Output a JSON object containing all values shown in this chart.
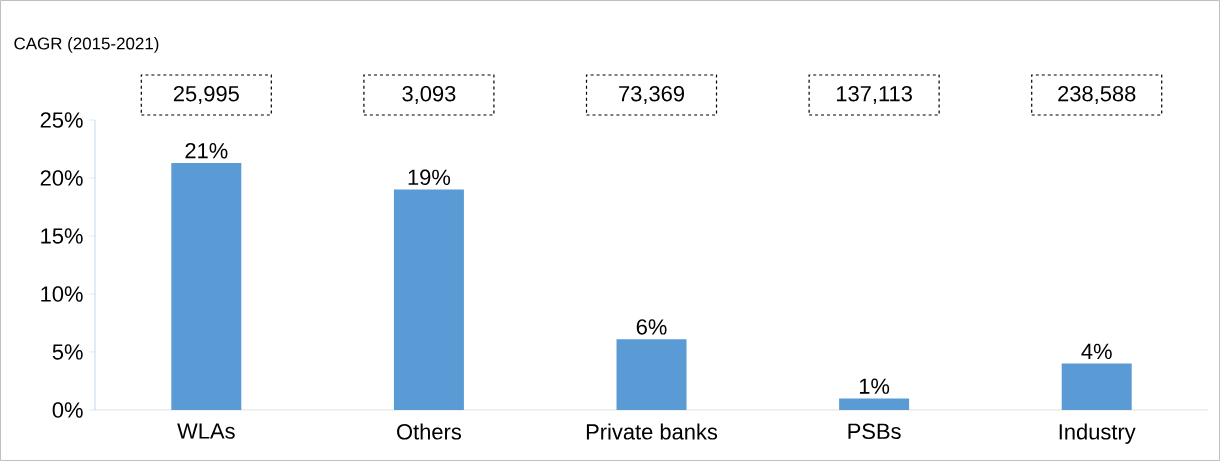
{
  "chart_data": {
    "type": "bar",
    "title": "CAGR (2015-2021)",
    "categories": [
      "WLAs",
      "Others",
      "Private banks",
      "PSBs",
      "Industry"
    ],
    "values": [
      21.3,
      19.0,
      6.1,
      1.0,
      4.0
    ],
    "value_labels": [
      "21%",
      "19%",
      "6%",
      "1%",
      "4%"
    ],
    "color": "#5b9bd5",
    "ylim": [
      0,
      25
    ],
    "yticks": [
      {
        "value": 0,
        "label": "0%"
      },
      {
        "value": 5,
        "label": "5%"
      },
      {
        "value": 10,
        "label": "10%"
      },
      {
        "value": 15,
        "label": "15%"
      },
      {
        "value": 20,
        "label": "20%"
      },
      {
        "value": 25,
        "label": "25%"
      }
    ],
    "grid": false,
    "annotations": [
      "25,995",
      "3,093",
      "73,369",
      "137,113",
      "238,588"
    ]
  }
}
